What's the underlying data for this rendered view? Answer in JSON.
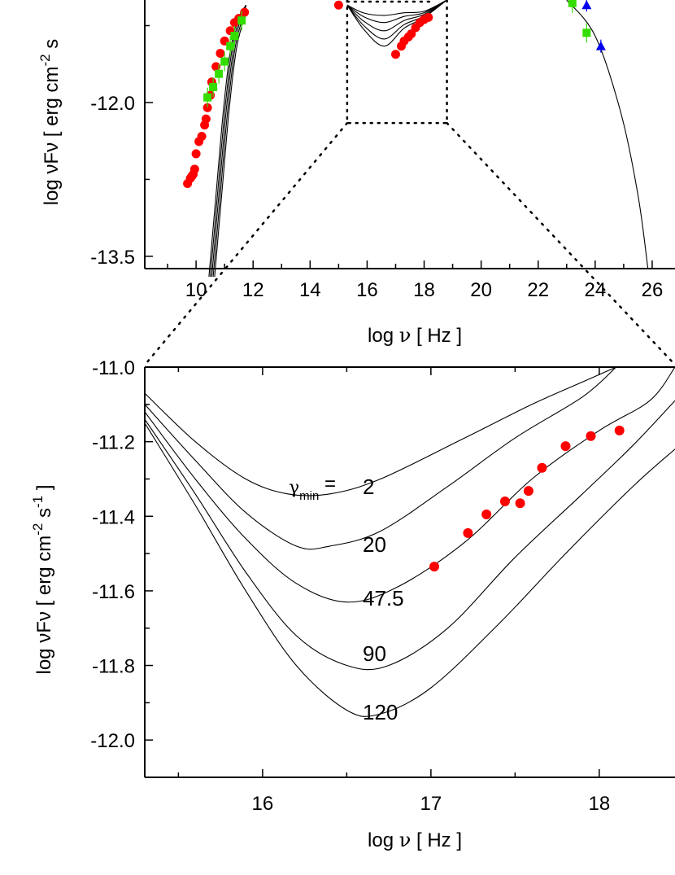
{
  "chart_data": [
    {
      "type": "scatter",
      "panel": "top",
      "xlabel_prefix": "log ",
      "xlabel_symbol": "ν",
      "xlabel_suffix": " [ Hz ]",
      "ylabel_prefix": "log ",
      "ylabel_symbol": "νFν",
      "ylabel_suffix": " [ erg cm",
      "ylabel_exp1": "-2",
      "ylabel_tail": " s",
      "xlim": [
        8.2,
        26.8
      ],
      "ylim": [
        -13.62,
        -11.0
      ],
      "xticks": [
        "10",
        "12",
        "14",
        "16",
        "18",
        "20",
        "22",
        "24",
        "26"
      ],
      "xtick_values": [
        10,
        12,
        14,
        16,
        18,
        20,
        22,
        24,
        26
      ],
      "yticks": [
        "-12.0",
        "-13.5"
      ],
      "ytick_values": [
        -12.0,
        -13.5
      ],
      "zoom_box": {
        "x": [
          15.3,
          18.8
        ],
        "y": [
          -12.2,
          -11.0
        ]
      },
      "series": [
        {
          "marker": "circle",
          "color": "#ff0000",
          "points": [
            [
              9.7,
              -12.79
            ],
            [
              9.8,
              -12.74
            ],
            [
              9.85,
              -12.72
            ],
            [
              9.9,
              -12.7
            ],
            [
              9.95,
              -12.65
            ],
            [
              10.0,
              -12.5
            ],
            [
              10.1,
              -12.38
            ],
            [
              10.2,
              -12.33
            ],
            [
              10.3,
              -12.22
            ],
            [
              10.35,
              -12.16
            ],
            [
              10.4,
              -12.05
            ],
            [
              10.5,
              -11.93
            ],
            [
              10.55,
              -11.8
            ],
            [
              10.7,
              -11.65
            ],
            [
              10.85,
              -11.52
            ],
            [
              11.0,
              -11.4
            ],
            [
              11.2,
              -11.3
            ],
            [
              11.35,
              -11.22
            ],
            [
              11.5,
              -11.18
            ],
            [
              11.7,
              -11.12
            ],
            [
              15.0,
              -11.05
            ],
            [
              17.0,
              -11.53
            ],
            [
              17.2,
              -11.45
            ],
            [
              17.3,
              -11.4
            ],
            [
              17.45,
              -11.36
            ],
            [
              17.55,
              -11.33
            ],
            [
              17.7,
              -11.27
            ],
            [
              17.85,
              -11.22
            ],
            [
              18.0,
              -11.19
            ],
            [
              18.15,
              -11.17
            ]
          ]
        },
        {
          "marker": "square",
          "color": "#33dd00",
          "points": [
            [
              10.4,
              -11.95
            ],
            [
              10.6,
              -11.85
            ],
            [
              10.8,
              -11.72
            ],
            [
              11.0,
              -11.6
            ],
            [
              11.2,
              -11.45
            ],
            [
              11.35,
              -11.35
            ],
            [
              11.6,
              -11.2
            ],
            [
              23.2,
              -11.03
            ],
            [
              23.7,
              -11.32
            ]
          ]
        },
        {
          "marker": "triangle",
          "color": "#0000ee",
          "points": [
            [
              23.7,
              -11.05
            ],
            [
              24.2,
              -11.45
            ]
          ]
        }
      ]
    },
    {
      "type": "line",
      "panel": "bottom",
      "xlabel_prefix": "log ",
      "xlabel_symbol": "ν",
      "xlabel_suffix": " [ Hz ]",
      "ylabel_prefix": "log ",
      "ylabel_symbol": "νFν",
      "ylabel_suffix": " [ erg cm",
      "ylabel_exp1": "-2",
      "ylabel_mid": " s",
      "ylabel_exp2": "-1",
      "ylabel_tail": " ]",
      "xlim": [
        15.3,
        18.45
      ],
      "ylim": [
        -12.1,
        -11.0
      ],
      "xticks": [
        "16",
        "17",
        "18"
      ],
      "xtick_values": [
        16,
        17,
        18
      ],
      "yticks": [
        "-11.0",
        "-11.2",
        "-11.4",
        "-11.6",
        "-11.8",
        "-12.0"
      ],
      "ytick_values": [
        -11.0,
        -11.2,
        -11.4,
        -11.6,
        -11.8,
        -12.0
      ],
      "gamma_symbol": "γ",
      "gamma_sub": "min",
      "gamma_eq": " =",
      "series": [
        {
          "name": "2",
          "points": [
            [
              15.3,
              -11.07
            ],
            [
              15.6,
              -11.2
            ],
            [
              15.9,
              -11.3
            ],
            [
              16.15,
              -11.34
            ],
            [
              16.4,
              -11.34
            ],
            [
              16.7,
              -11.3
            ],
            [
              17.2,
              -11.19
            ],
            [
              17.6,
              -11.1
            ],
            [
              17.9,
              -11.04
            ],
            [
              18.1,
              -11.0
            ]
          ]
        },
        {
          "name": "20",
          "points": [
            [
              15.3,
              -11.1
            ],
            [
              15.6,
              -11.25
            ],
            [
              15.9,
              -11.39
            ],
            [
              16.2,
              -11.48
            ],
            [
              16.4,
              -11.48
            ],
            [
              16.7,
              -11.44
            ],
            [
              17.1,
              -11.32
            ],
            [
              17.5,
              -11.19
            ],
            [
              17.9,
              -11.08
            ],
            [
              18.1,
              -11.0
            ]
          ]
        },
        {
          "name": "47.5",
          "points": [
            [
              15.3,
              -11.12
            ],
            [
              15.6,
              -11.3
            ],
            [
              15.9,
              -11.46
            ],
            [
              16.2,
              -11.58
            ],
            [
              16.5,
              -11.63
            ],
            [
              16.8,
              -11.59
            ],
            [
              17.2,
              -11.47
            ],
            [
              17.6,
              -11.3
            ],
            [
              18.0,
              -11.17
            ],
            [
              18.3,
              -11.09
            ],
            [
              18.45,
              -11.0
            ]
          ]
        },
        {
          "name": "90",
          "points": [
            [
              15.3,
              -11.14
            ],
            [
              15.6,
              -11.34
            ],
            [
              15.9,
              -11.55
            ],
            [
              16.2,
              -11.72
            ],
            [
              16.5,
              -11.8
            ],
            [
              16.75,
              -11.8
            ],
            [
              17.1,
              -11.7
            ],
            [
              17.5,
              -11.51
            ],
            [
              17.9,
              -11.34
            ],
            [
              18.2,
              -11.21
            ],
            [
              18.45,
              -11.09
            ]
          ]
        },
        {
          "name": "120",
          "points": [
            [
              15.3,
              -11.15
            ],
            [
              15.6,
              -11.37
            ],
            [
              15.9,
              -11.6
            ],
            [
              16.2,
              -11.8
            ],
            [
              16.5,
              -11.92
            ],
            [
              16.7,
              -11.93
            ],
            [
              17.0,
              -11.86
            ],
            [
              17.4,
              -11.69
            ],
            [
              17.8,
              -11.5
            ],
            [
              18.2,
              -11.32
            ],
            [
              18.45,
              -11.22
            ]
          ]
        }
      ],
      "data_points": [
        [
          17.02,
          -11.535
        ],
        [
          17.22,
          -11.445
        ],
        [
          17.33,
          -11.395
        ],
        [
          17.44,
          -11.36
        ],
        [
          17.53,
          -11.365
        ],
        [
          17.58,
          -11.332
        ],
        [
          17.66,
          -11.27
        ],
        [
          17.8,
          -11.212
        ],
        [
          17.95,
          -11.185
        ],
        [
          18.12,
          -11.17
        ]
      ],
      "data_color": "#ff0000"
    }
  ]
}
